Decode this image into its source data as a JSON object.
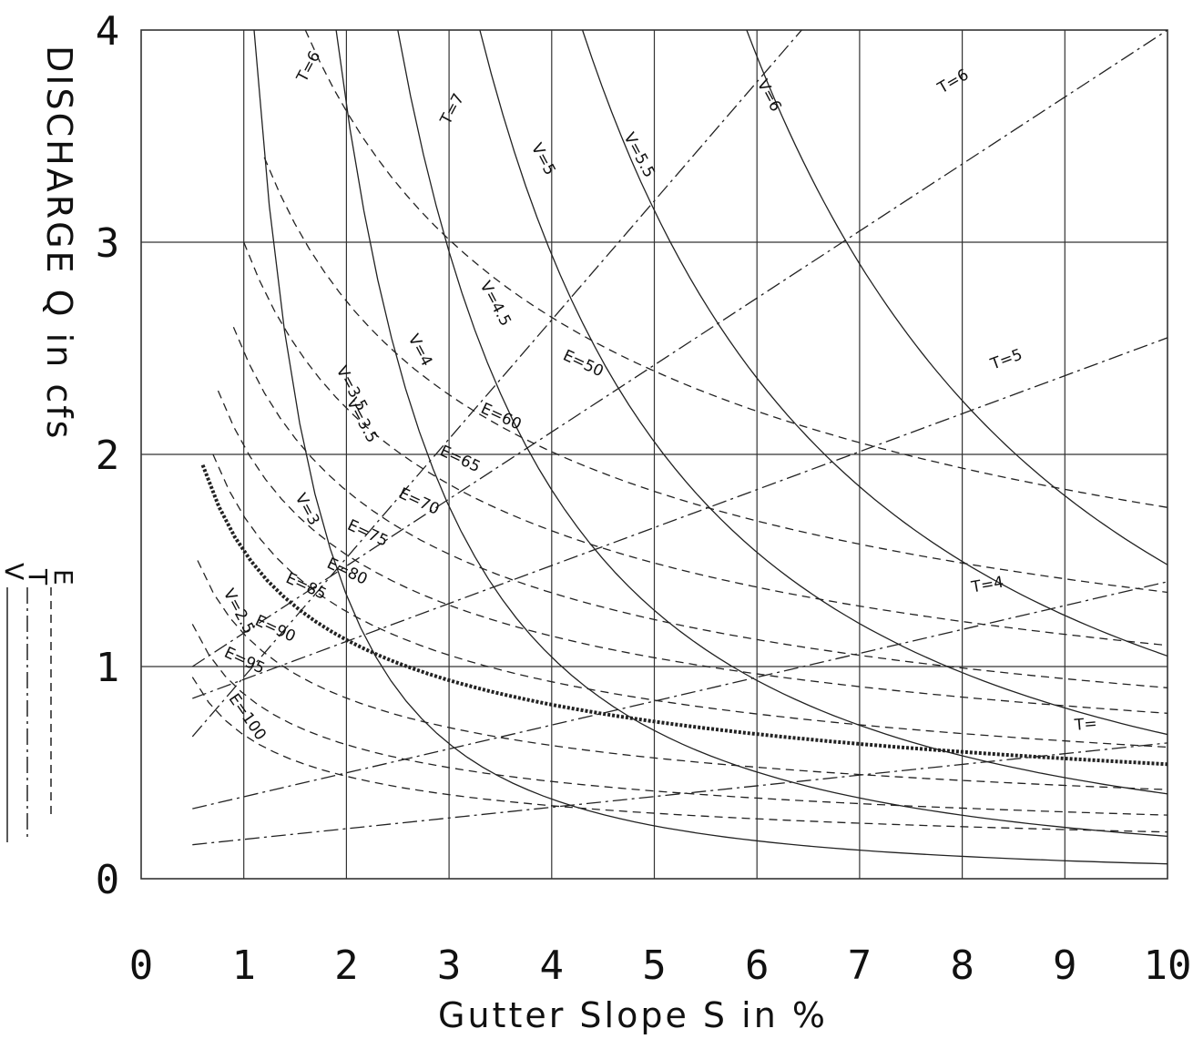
{
  "chart_data": {
    "type": "line",
    "xlabel": "Gutter Slope S in %",
    "ylabel": "DISCHARGE Q in cfs",
    "xlim": [
      0,
      10
    ],
    "ylim": [
      0,
      4
    ],
    "x_ticks": [
      "0",
      "1",
      "2",
      "3",
      "4",
      "5",
      "6",
      "7",
      "8",
      "9",
      "10"
    ],
    "y_ticks": [
      "0",
      "1",
      "2",
      "3",
      "4"
    ],
    "grid": true,
    "legend_letters": [
      "E",
      "T",
      "V"
    ],
    "series": [
      {
        "name": "T=7",
        "family": "T",
        "style": "dash-dot",
        "x": [
          0.5,
          10
        ],
        "y": [
          0.67,
          6.0
        ]
      },
      {
        "name": "T=6",
        "family": "T",
        "style": "dash-dot",
        "x": [
          0.5,
          10
        ],
        "y": [
          1.0,
          4.0
        ]
      },
      {
        "name": "T=5",
        "family": "T",
        "style": "dash-dot",
        "x": [
          0.5,
          10
        ],
        "y": [
          0.85,
          2.55
        ]
      },
      {
        "name": "T=4",
        "family": "T",
        "style": "dash-dot",
        "x": [
          0.5,
          10
        ],
        "y": [
          0.33,
          1.4
        ]
      },
      {
        "name": "T=",
        "family": "T",
        "style": "dash-dot",
        "x": [
          0.5,
          10
        ],
        "y": [
          0.16,
          0.64
        ]
      },
      {
        "name": "V=6",
        "family": "V",
        "style": "solid",
        "x": [
          5.9,
          10
        ],
        "y": [
          4.0,
          1.48
        ]
      },
      {
        "name": "V=5.5",
        "family": "V",
        "style": "solid",
        "x": [
          4.3,
          10
        ],
        "y": [
          4.0,
          1.05
        ]
      },
      {
        "name": "V=5",
        "family": "V",
        "style": "solid",
        "x": [
          3.3,
          10
        ],
        "y": [
          4.0,
          0.68
        ]
      },
      {
        "name": "V=4.5",
        "family": "V",
        "style": "solid",
        "x": [
          2.5,
          10
        ],
        "y": [
          4.0,
          0.4
        ]
      },
      {
        "name": "V=4",
        "family": "V",
        "style": "solid",
        "x": [
          1.9,
          10
        ],
        "y": [
          4.0,
          0.2
        ]
      },
      {
        "name": "V=3",
        "family": "V",
        "style": "solid",
        "x": [
          1.1,
          10
        ],
        "y": [
          4.0,
          0.07
        ]
      },
      {
        "name": "E=50",
        "family": "E",
        "style": "dashed",
        "x": [
          1.6,
          10
        ],
        "y": [
          4.0,
          1.75
        ]
      },
      {
        "name": "E=60",
        "family": "E",
        "style": "dashed",
        "x": [
          1.2,
          10
        ],
        "y": [
          3.4,
          1.35
        ]
      },
      {
        "name": "E=65",
        "family": "E",
        "style": "dashed",
        "x": [
          1.0,
          10
        ],
        "y": [
          3.0,
          1.1
        ]
      },
      {
        "name": "E=70",
        "family": "E",
        "style": "dashed",
        "x": [
          0.9,
          10
        ],
        "y": [
          2.6,
          0.9
        ]
      },
      {
        "name": "E=75",
        "family": "E",
        "style": "dashed",
        "x": [
          0.75,
          10
        ],
        "y": [
          2.3,
          0.78
        ]
      },
      {
        "name": "E=80",
        "family": "E",
        "style": "dashed",
        "x": [
          0.7,
          10
        ],
        "y": [
          2.0,
          0.62
        ]
      },
      {
        "name": "E=85",
        "family": "E",
        "style": "dashed",
        "x": [
          0.6,
          10
        ],
        "y": [
          1.95,
          0.54
        ]
      },
      {
        "name": "E=90",
        "family": "E",
        "style": "dashed",
        "x": [
          0.55,
          10
        ],
        "y": [
          1.5,
          0.42
        ]
      },
      {
        "name": "E=95",
        "family": "E",
        "style": "dashed",
        "x": [
          0.5,
          10
        ],
        "y": [
          1.2,
          0.3
        ]
      },
      {
        "name": "E=100",
        "family": "E",
        "style": "dashed",
        "x": [
          0.5,
          10
        ],
        "y": [
          0.95,
          0.22
        ]
      }
    ],
    "labels": {
      "T": [
        "T=7",
        "T=6",
        "T=6",
        "T=5",
        "T=4",
        "T="
      ],
      "V": [
        "V=6",
        "V=5.5",
        "V=5",
        "V=4.5",
        "V=4",
        "V=3.5",
        "V=3",
        "V=3.5",
        "V=2.5"
      ],
      "E": [
        "E=50",
        "E=60",
        "E=65",
        "E=70",
        "E=75",
        "E=80",
        "E=85",
        "E=90",
        "E=95",
        "E=100"
      ]
    }
  }
}
